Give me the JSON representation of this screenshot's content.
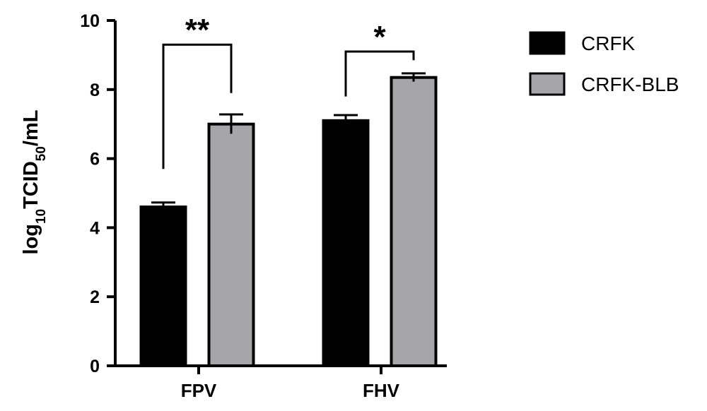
{
  "chart_data": {
    "type": "bar",
    "title": "",
    "xlabel": "",
    "ylabel": "log10TCID50/mL",
    "ylabel_parts": {
      "base": "log",
      "sub1": "10",
      "mid": "TCID",
      "sub2": "50",
      "tail": "/mL"
    },
    "ylim": [
      0,
      10
    ],
    "yticks": [
      "0",
      "2",
      "4",
      "6",
      "8",
      "10"
    ],
    "categories": [
      "FPV",
      "FHV"
    ],
    "series": [
      {
        "name": "CRFK",
        "values": [
          4.6,
          7.1
        ],
        "errors": [
          0.13,
          0.16
        ],
        "color": "#000000"
      },
      {
        "name": "CRFK-BLB",
        "values": [
          7.0,
          8.35
        ],
        "errors": [
          0.28,
          0.12
        ],
        "color": "#a6a6a8"
      }
    ],
    "significance": [
      {
        "category": "FPV",
        "label": "**"
      },
      {
        "category": "FHV",
        "label": "*"
      }
    ],
    "grid": false,
    "legend_position": "top-right"
  }
}
